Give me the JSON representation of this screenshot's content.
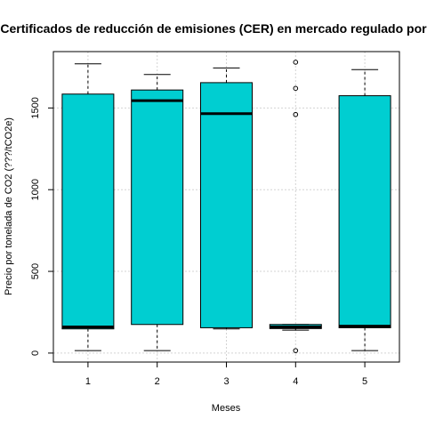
{
  "chart_data": {
    "type": "boxplot",
    "title": "Certificados de reducción de emisiones (CER) en mercado regulado por",
    "xlabel": "Meses",
    "ylabel": "Precio por tonelada de CO2 (???/tCO2e)",
    "categories": [
      "1",
      "2",
      "3",
      "4",
      "5"
    ],
    "ylim": [
      -55,
      1845
    ],
    "yticks": [
      0,
      500,
      1000,
      1500
    ],
    "grid": true,
    "fill_color": "#00CED1",
    "boxes": [
      {
        "category": "1",
        "whisker_low": 15,
        "q1": 148,
        "median": 160,
        "q3": 1585,
        "whisker_high": 1770,
        "outliers": []
      },
      {
        "category": "2",
        "whisker_low": 15,
        "q1": 175,
        "median": 1545,
        "q3": 1610,
        "whisker_high": 1705,
        "outliers": []
      },
      {
        "category": "3",
        "whisker_low": 148,
        "q1": 155,
        "median": 1465,
        "q3": 1655,
        "whisker_high": 1745,
        "outliers": []
      },
      {
        "category": "4",
        "whisker_low": 140,
        "q1": 150,
        "median": 160,
        "q3": 175,
        "whisker_high": 175,
        "outliers": [
          15,
          1460,
          1620,
          1780
        ]
      },
      {
        "category": "5",
        "whisker_low": 15,
        "q1": 155,
        "median": 165,
        "q3": 1575,
        "whisker_high": 1735,
        "outliers": []
      }
    ]
  }
}
